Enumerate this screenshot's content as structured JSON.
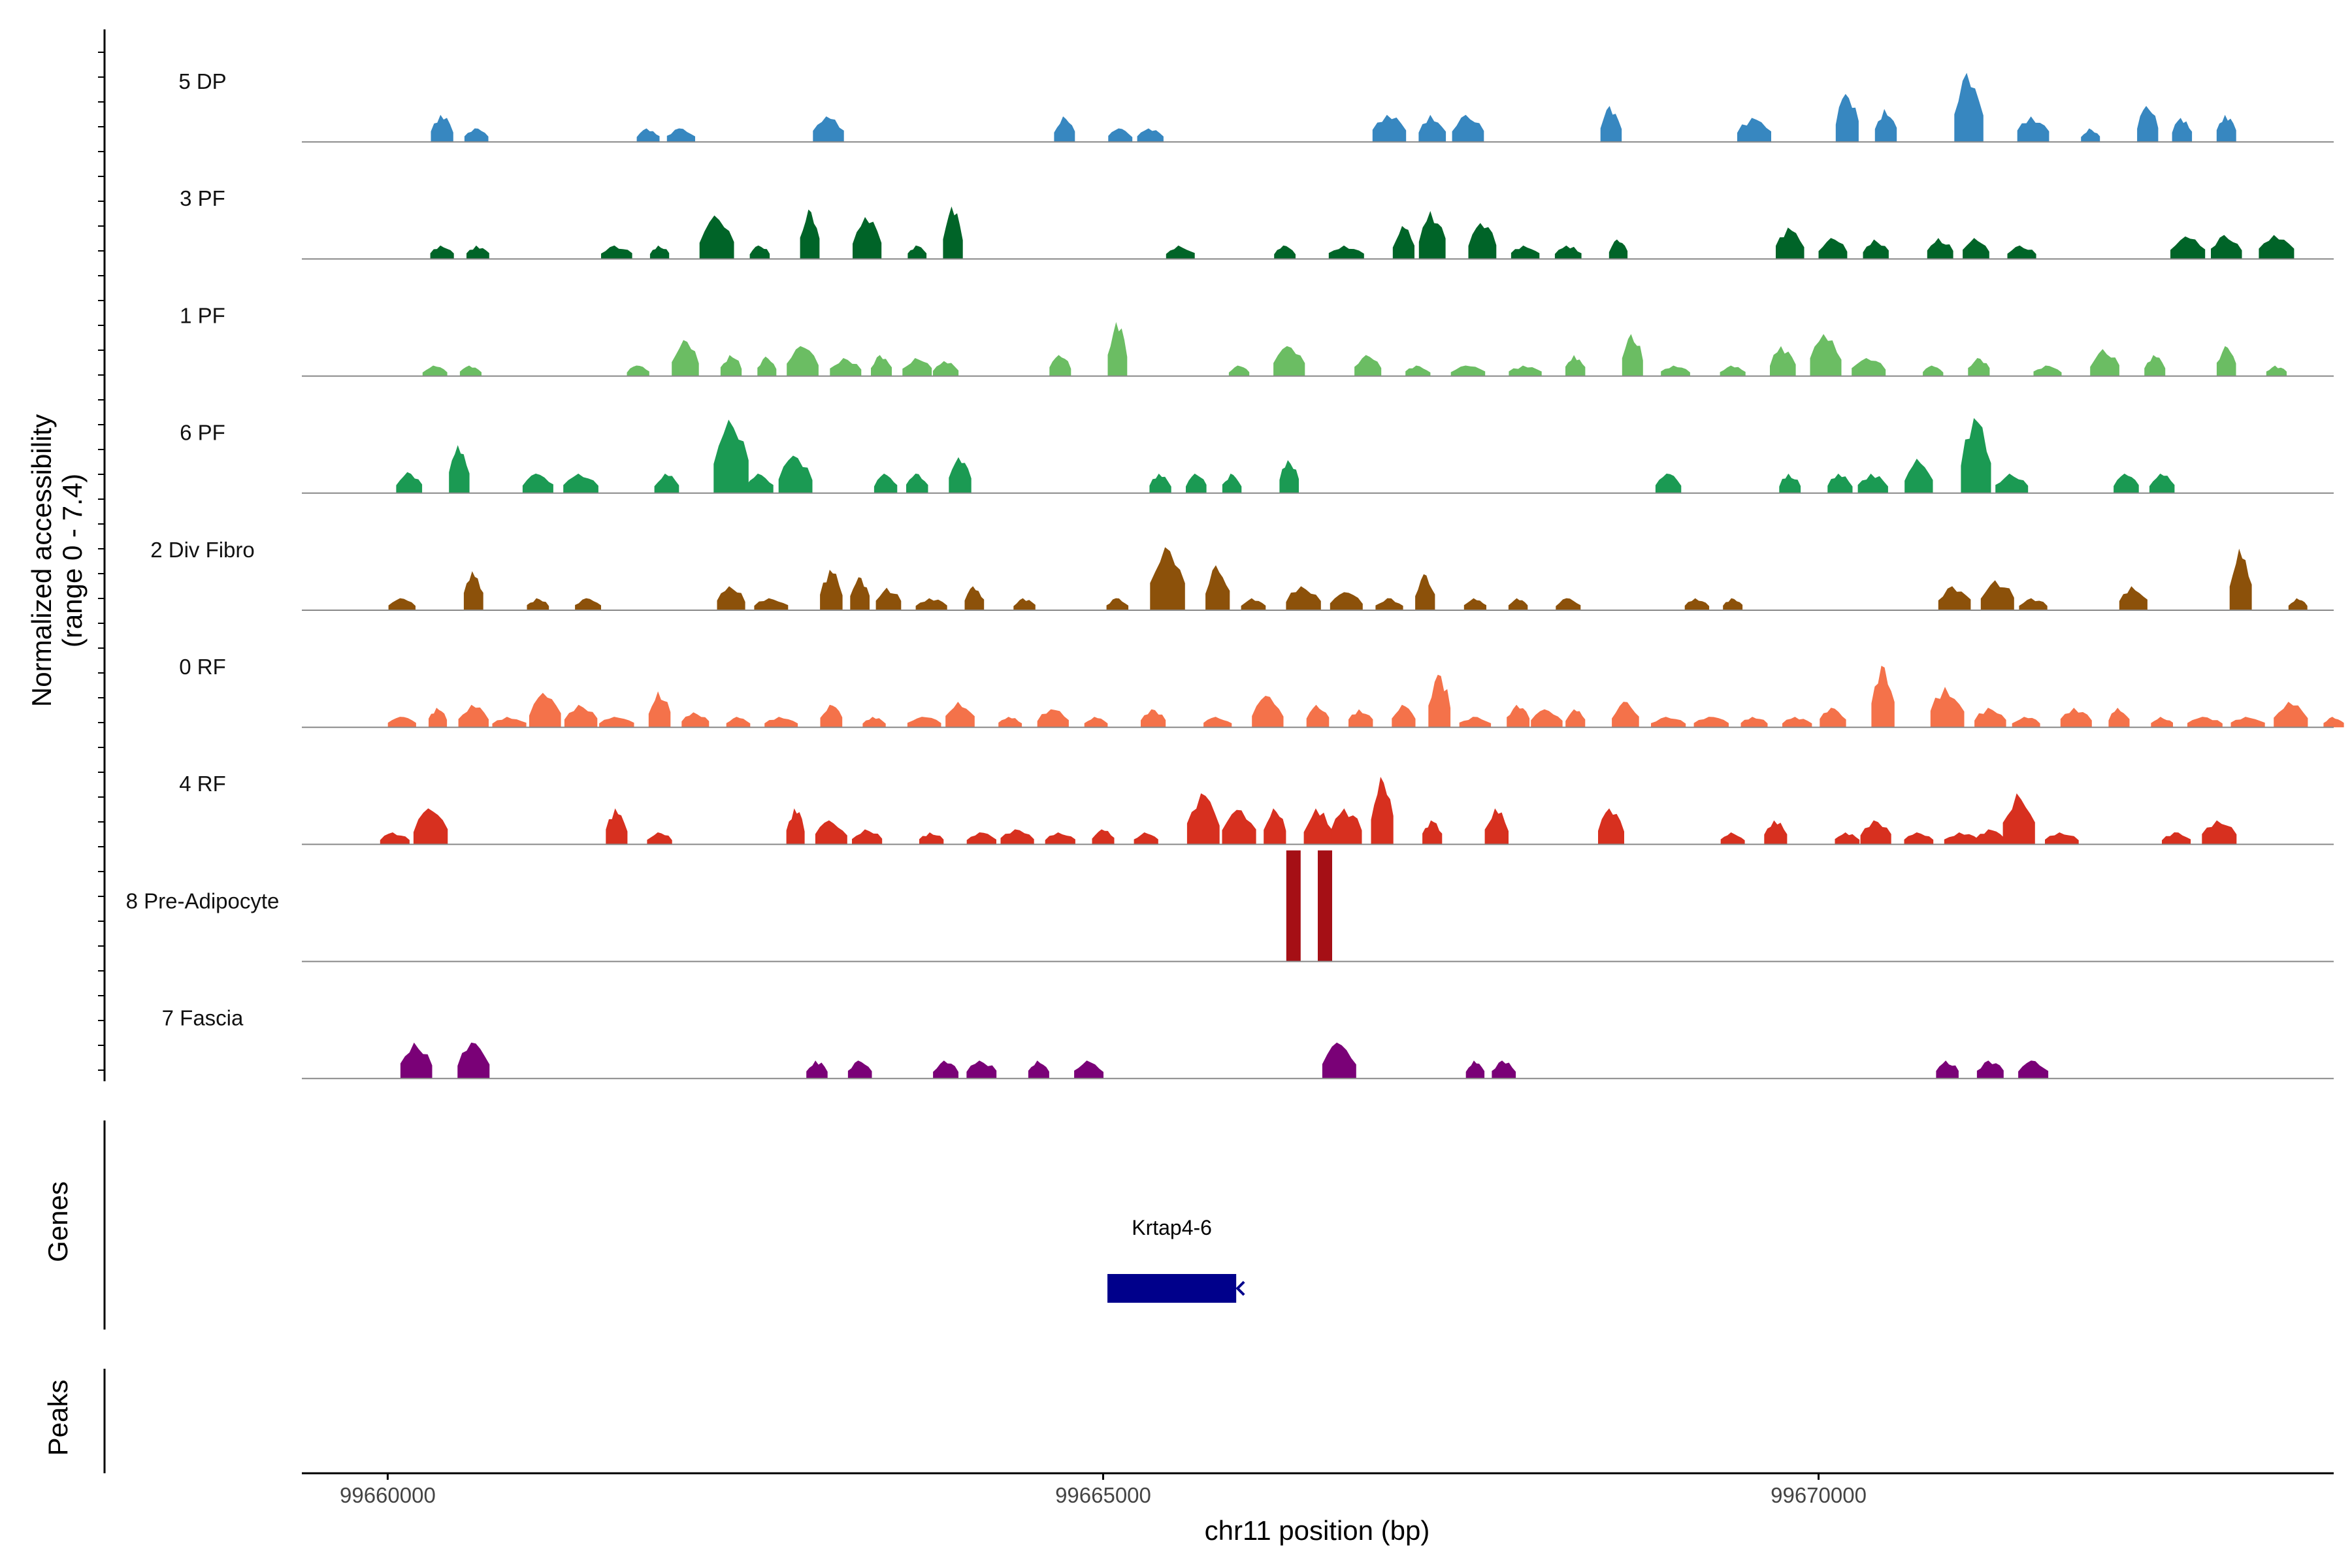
{
  "chart_data": {
    "type": "area",
    "title": "",
    "ylabel_line1": "Normalized accessibility",
    "ylabel_line2": "(range 0 - 7.4)",
    "xlabel": "chr11 position (bp)",
    "xlim": [
      99659400,
      99673600
    ],
    "ylim": [
      0,
      7.4
    ],
    "x_ticks": [
      99660000,
      99665000,
      99670000
    ],
    "x_tick_labels": [
      "99660000",
      "99665000",
      "99670000"
    ],
    "panels": {
      "genes_label": "Genes",
      "peaks_label": "Peaks"
    },
    "tracks": [
      {
        "name": "5 DP",
        "color": "#3787c0",
        "peaks": [
          [
            99660380,
            1.8
          ],
          [
            99660620,
            0.9
          ],
          [
            99661820,
            0.9
          ],
          [
            99662050,
            0.9
          ],
          [
            99663080,
            1.7
          ],
          [
            99664730,
            1.7
          ],
          [
            99665120,
            0.9
          ],
          [
            99665330,
            0.9
          ],
          [
            99667000,
            1.8
          ],
          [
            99667300,
            1.8
          ],
          [
            99667550,
            1.8
          ],
          [
            99668550,
            2.4
          ],
          [
            99669550,
            1.6
          ],
          [
            99670200,
            3.2
          ],
          [
            99670470,
            2.2
          ],
          [
            99671050,
            4.6
          ],
          [
            99671500,
            1.7
          ],
          [
            99671900,
            0.9
          ],
          [
            99672300,
            2.4
          ],
          [
            99672540,
            1.6
          ],
          [
            99672850,
            1.8
          ]
        ]
      },
      {
        "name": "3 PF",
        "color": "#006428",
        "peaks": [
          [
            99660380,
            0.9
          ],
          [
            99660630,
            0.9
          ],
          [
            99661600,
            0.9
          ],
          [
            99661900,
            0.9
          ],
          [
            99662300,
            2.9
          ],
          [
            99662600,
            0.9
          ],
          [
            99662950,
            3.3
          ],
          [
            99663350,
            2.8
          ],
          [
            99663700,
            0.9
          ],
          [
            99663950,
            3.5
          ],
          [
            99665540,
            0.9
          ],
          [
            99666270,
            0.9
          ],
          [
            99666700,
            0.9
          ],
          [
            99667100,
            2.2
          ],
          [
            99667300,
            3.2
          ],
          [
            99667650,
            2.4
          ],
          [
            99667950,
            0.9
          ],
          [
            99668250,
            0.9
          ],
          [
            99668600,
            1.3
          ],
          [
            99669800,
            2.1
          ],
          [
            99670100,
            1.4
          ],
          [
            99670400,
            1.3
          ],
          [
            99670850,
            1.4
          ],
          [
            99671100,
            1.4
          ],
          [
            99671420,
            0.9
          ],
          [
            99672580,
            1.5
          ],
          [
            99672850,
            1.6
          ],
          [
            99673200,
            1.6
          ]
        ]
      },
      {
        "name": "1 PF",
        "color": "#6bbd63",
        "peaks": [
          [
            99660330,
            0.7
          ],
          [
            99660580,
            0.7
          ],
          [
            99661750,
            0.7
          ],
          [
            99662080,
            2.4
          ],
          [
            99662400,
            1.4
          ],
          [
            99662650,
            1.3
          ],
          [
            99662900,
            2.0
          ],
          [
            99663200,
            1.2
          ],
          [
            99663450,
            1.4
          ],
          [
            99663700,
            1.2
          ],
          [
            99663900,
            1.0
          ],
          [
            99664700,
            1.4
          ],
          [
            99665100,
            3.6
          ],
          [
            99665950,
            0.7
          ],
          [
            99666300,
            2.0
          ],
          [
            99666850,
            1.4
          ],
          [
            99667200,
            0.7
          ],
          [
            99667550,
            0.7
          ],
          [
            99667950,
            0.7
          ],
          [
            99668300,
            1.4
          ],
          [
            99668700,
            2.8
          ],
          [
            99669000,
            0.7
          ],
          [
            99669400,
            0.7
          ],
          [
            99669750,
            2.0
          ],
          [
            99670050,
            2.8
          ],
          [
            99670350,
            1.2
          ],
          [
            99670800,
            0.7
          ],
          [
            99671120,
            1.2
          ],
          [
            99671600,
            0.7
          ],
          [
            99672000,
            1.8
          ],
          [
            99672350,
            1.4
          ],
          [
            99672850,
            2.0
          ],
          [
            99673200,
            0.7
          ]
        ]
      },
      {
        "name": "6 PF",
        "color": "#1b9a53",
        "peaks": [
          [
            99660150,
            1.4
          ],
          [
            99660500,
            3.2
          ],
          [
            99661050,
            1.3
          ],
          [
            99661350,
            1.3
          ],
          [
            99661950,
            1.3
          ],
          [
            99662400,
            4.9
          ],
          [
            99662600,
            1.3
          ],
          [
            99662850,
            2.5
          ],
          [
            99663480,
            1.3
          ],
          [
            99663700,
            1.3
          ],
          [
            99664000,
            2.4
          ],
          [
            99665400,
            1.3
          ],
          [
            99665650,
            1.3
          ],
          [
            99665900,
            1.3
          ],
          [
            99666300,
            2.2
          ],
          [
            99668950,
            1.3
          ],
          [
            99669800,
            1.3
          ],
          [
            99670150,
            1.3
          ],
          [
            99670380,
            1.3
          ],
          [
            99670700,
            2.3
          ],
          [
            99671100,
            5.0
          ],
          [
            99671350,
            1.3
          ],
          [
            99672150,
            1.3
          ],
          [
            99672400,
            1.3
          ]
        ]
      },
      {
        "name": "2 Div Fibro",
        "color": "#8c510a",
        "peaks": [
          [
            99660100,
            0.8
          ],
          [
            99660600,
            2.6
          ],
          [
            99661050,
            0.8
          ],
          [
            99661400,
            0.8
          ],
          [
            99662400,
            1.6
          ],
          [
            99662680,
            0.8
          ],
          [
            99663100,
            2.7
          ],
          [
            99663300,
            2.2
          ],
          [
            99663500,
            1.5
          ],
          [
            99663800,
            0.8
          ],
          [
            99664100,
            1.6
          ],
          [
            99664450,
            0.8
          ],
          [
            99665100,
            0.8
          ],
          [
            99665450,
            4.2
          ],
          [
            99665800,
            3.0
          ],
          [
            99666050,
            0.8
          ],
          [
            99666400,
            1.6
          ],
          [
            99666700,
            1.2
          ],
          [
            99667000,
            0.8
          ],
          [
            99667250,
            2.4
          ],
          [
            99667600,
            0.8
          ],
          [
            99667900,
            0.8
          ],
          [
            99668250,
            0.8
          ],
          [
            99669150,
            0.8
          ],
          [
            99669400,
            0.8
          ],
          [
            99670950,
            1.6
          ],
          [
            99671250,
            2.0
          ],
          [
            99671500,
            0.8
          ],
          [
            99672200,
            1.6
          ],
          [
            99672950,
            4.1
          ],
          [
            99673350,
            0.8
          ]
        ]
      },
      {
        "name": "0 RF",
        "color": "#f4724a",
        "peaks": [
          [
            99660100,
            0.7
          ],
          [
            99660350,
            1.3
          ],
          [
            99660600,
            1.5
          ],
          [
            99660850,
            0.7
          ],
          [
            99661100,
            2.3
          ],
          [
            99661350,
            1.5
          ],
          [
            99661600,
            0.7
          ],
          [
            99661900,
            2.4
          ],
          [
            99662150,
            1.0
          ],
          [
            99662450,
            0.7
          ],
          [
            99662750,
            0.7
          ],
          [
            99663100,
            1.5
          ],
          [
            99663400,
            0.7
          ],
          [
            99663750,
            0.7
          ],
          [
            99664000,
            1.7
          ],
          [
            99664350,
            0.7
          ],
          [
            99664650,
            1.2
          ],
          [
            99664950,
            0.7
          ],
          [
            99665350,
            1.2
          ],
          [
            99665800,
            0.7
          ],
          [
            99666150,
            2.1
          ],
          [
            99666500,
            1.5
          ],
          [
            99666800,
            1.2
          ],
          [
            99667100,
            1.5
          ],
          [
            99667350,
            3.5
          ],
          [
            99667600,
            0.7
          ],
          [
            99667900,
            1.5
          ],
          [
            99668100,
            1.2
          ],
          [
            99668300,
            1.2
          ],
          [
            99668650,
            1.7
          ],
          [
            99668950,
            0.7
          ],
          [
            99669250,
            0.7
          ],
          [
            99669550,
            0.7
          ],
          [
            99669850,
            0.7
          ],
          [
            99670100,
            1.3
          ],
          [
            99670450,
            4.1
          ],
          [
            99670900,
            2.7
          ],
          [
            99671200,
            1.3
          ],
          [
            99671450,
            0.7
          ],
          [
            99671800,
            1.3
          ],
          [
            99672100,
            1.3
          ],
          [
            99672400,
            0.7
          ],
          [
            99672700,
            0.7
          ],
          [
            99673000,
            0.7
          ],
          [
            99673300,
            1.7
          ],
          [
            99673600,
            0.7
          ]
        ]
      },
      {
        "name": "4 RF",
        "color": "#d7301f",
        "peaks": [
          [
            99660050,
            0.8
          ],
          [
            99660300,
            2.4
          ],
          [
            99661600,
            2.4
          ],
          [
            99661900,
            0.8
          ],
          [
            99662850,
            2.4
          ],
          [
            99663100,
            1.6
          ],
          [
            99663350,
            1.0
          ],
          [
            99663800,
            0.8
          ],
          [
            99664150,
            0.8
          ],
          [
            99664400,
            1.0
          ],
          [
            99664700,
            0.8
          ],
          [
            99665000,
            1.0
          ],
          [
            99665300,
            0.8
          ],
          [
            99665700,
            3.4
          ],
          [
            99665950,
            2.3
          ],
          [
            99666200,
            2.4
          ],
          [
            99666500,
            2.4
          ],
          [
            99666700,
            2.4
          ],
          [
            99666950,
            4.5
          ],
          [
            99667300,
            1.6
          ],
          [
            99667750,
            2.4
          ],
          [
            99668550,
            2.4
          ],
          [
            99669400,
            0.8
          ],
          [
            99669700,
            1.6
          ],
          [
            99670200,
            0.8
          ],
          [
            99670400,
            1.6
          ],
          [
            99670700,
            0.8
          ],
          [
            99671000,
            0.8
          ],
          [
            99671200,
            1.0
          ],
          [
            99671400,
            3.4
          ],
          [
            99671700,
            0.8
          ],
          [
            99672500,
            0.8
          ],
          [
            99672800,
            1.6
          ]
        ]
      },
      {
        "name": "8 Pre-Adipocyte",
        "color": "#a50f15",
        "peaks": [
          [
            99666330,
            7.4
          ],
          [
            99666550,
            7.4
          ]
        ]
      },
      {
        "name": "7 Fascia",
        "color": "#7a0177",
        "peaks": [
          [
            99660200,
            2.4
          ],
          [
            99660600,
            2.4
          ],
          [
            99663000,
            1.2
          ],
          [
            99663300,
            1.2
          ],
          [
            99663900,
            1.2
          ],
          [
            99664150,
            1.2
          ],
          [
            99664550,
            1.2
          ],
          [
            99664900,
            1.2
          ],
          [
            99666650,
            2.4
          ],
          [
            99667600,
            1.2
          ],
          [
            99667800,
            1.2
          ],
          [
            99670900,
            1.2
          ],
          [
            99671200,
            1.2
          ],
          [
            99671500,
            1.2
          ]
        ]
      }
    ],
    "genes": [
      {
        "name": "Krtap4-6",
        "start": 99665030,
        "end": 99665930,
        "strand": "-",
        "color": "#00008b"
      }
    ]
  }
}
